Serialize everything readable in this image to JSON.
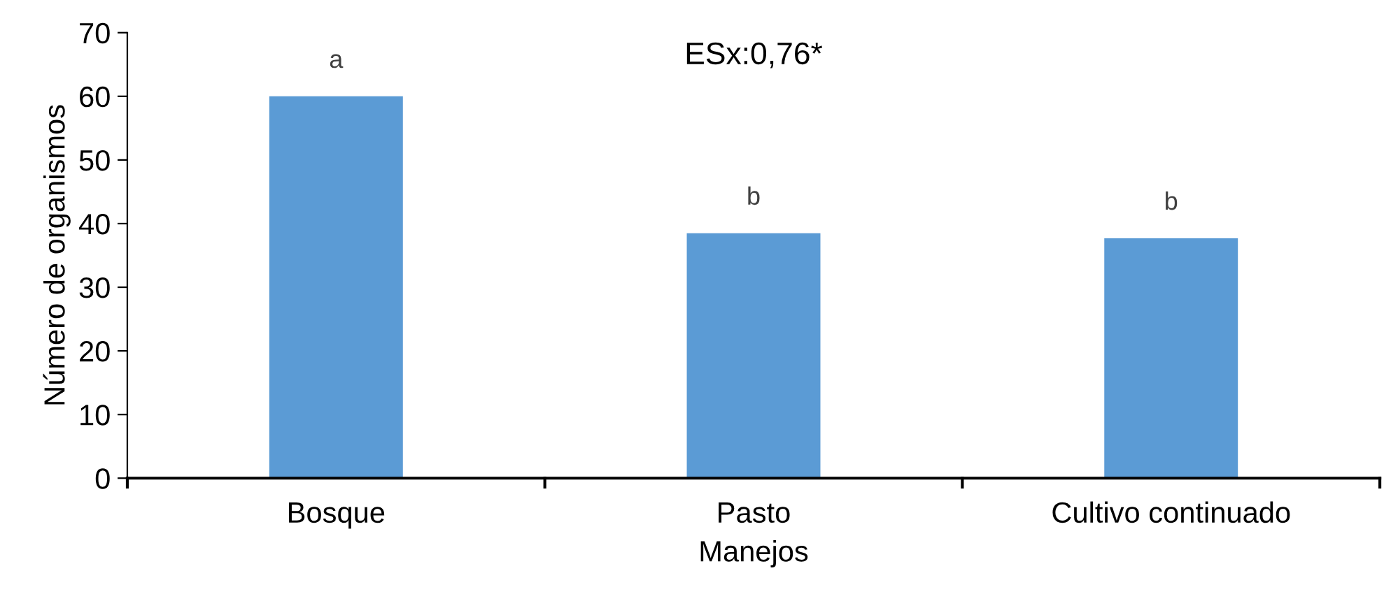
{
  "chart_data": {
    "type": "bar",
    "title": "ESx:0,76*",
    "xlabel": "Manejos",
    "ylabel": "Número de organismos",
    "categories": [
      "Bosque",
      "Pasto",
      "Cultivo continuado"
    ],
    "values": [
      60,
      38.5,
      37.7
    ],
    "color": "#5b9bd5",
    "ylim": [
      0,
      70
    ],
    "yticks": [
      0,
      10,
      20,
      30,
      40,
      50,
      60,
      70
    ],
    "grid": false,
    "legend": false,
    "annotations": [
      {
        "text": "a",
        "x": "Bosque",
        "y": 60
      },
      {
        "text": "b",
        "x": "Pasto",
        "y": 38.5
      },
      {
        "text": "b",
        "x": "Cultivo continuado",
        "y": 37.7
      }
    ]
  }
}
